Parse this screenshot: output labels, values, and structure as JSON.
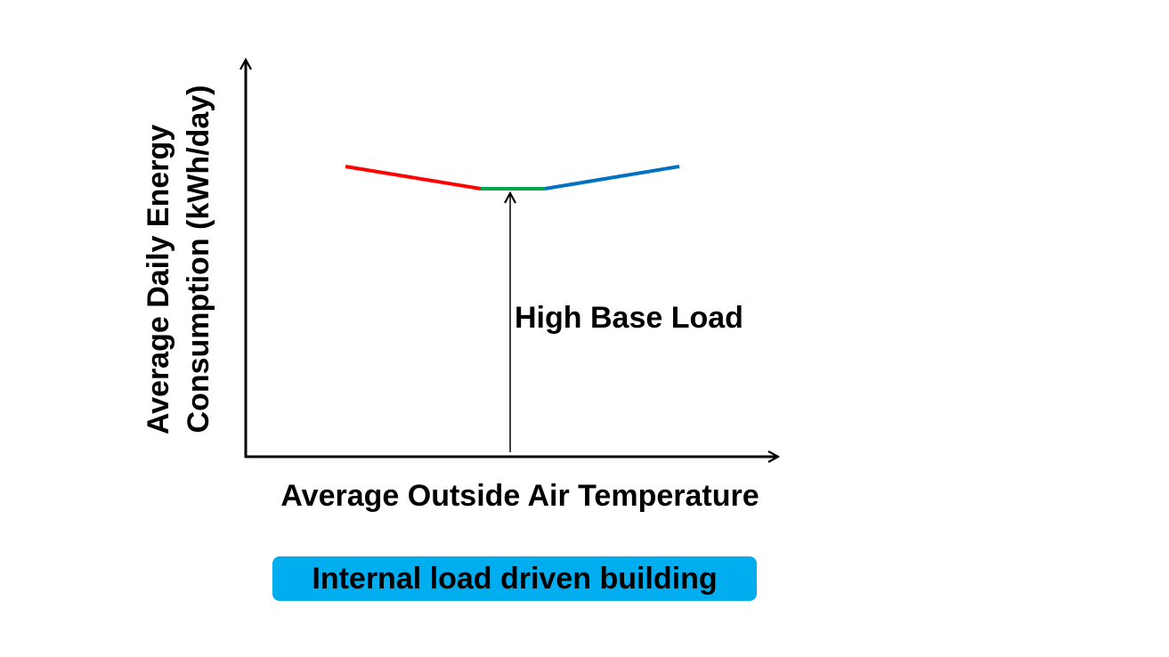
{
  "axes": {
    "y_label_line1": "Average Daily Energy",
    "y_label_line2": "Consumption (kWh/day)",
    "x_label": "Average Outside Air Temperature"
  },
  "annotation": {
    "label": "High Base Load"
  },
  "caption": {
    "label": "Internal load driven building",
    "background_color": "#00AEEF"
  },
  "segments": {
    "heating_color": "#FF0000",
    "baseload_color": "#00A651",
    "cooling_color": "#0070C0"
  }
}
